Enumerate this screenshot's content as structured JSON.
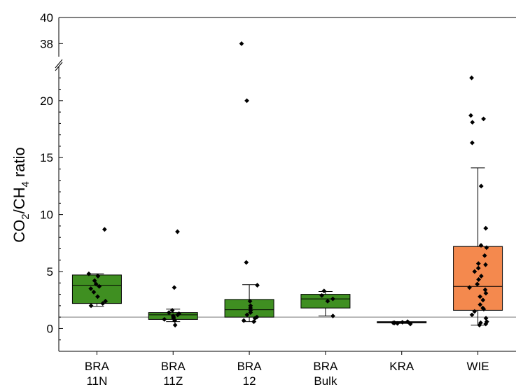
{
  "chart_data": {
    "type": "box",
    "ylabel": {
      "main": "CO",
      "sub1": "2",
      "mid": "/CH",
      "sub2": "4",
      "tail": " ratio"
    },
    "ylim_lower": [
      -2,
      23
    ],
    "ylim_upper": [
      37,
      40
    ],
    "y_ticks_lower": [
      0,
      5,
      10,
      15,
      20
    ],
    "y_ticks_upper": [
      38,
      40
    ],
    "reference_line": 1,
    "categories": [
      {
        "line1": "BRA",
        "line2": "11N"
      },
      {
        "line1": "BRA",
        "line2": "11Z"
      },
      {
        "line1": "BRA",
        "line2": "12"
      },
      {
        "line1": "BRA",
        "line2": "Bulk"
      },
      {
        "line1": "KRA",
        "line2": ""
      },
      {
        "line1": "WIE",
        "line2": ""
      }
    ],
    "boxes": [
      {
        "q1": 2.2,
        "median": 3.8,
        "q3": 4.7,
        "whisker_low": 1.95,
        "whisker_high": 4.8,
        "color": "#3f8f21",
        "points": [
          8.7,
          4.8,
          4.6,
          4.2,
          3.9,
          3.7,
          3.5,
          3.2,
          2.8,
          2.4,
          2.2,
          2.0
        ]
      },
      {
        "q1": 0.8,
        "median": 1.2,
        "q3": 1.4,
        "whisker_low": 0.6,
        "whisker_high": 1.7,
        "color": "#3f8f21",
        "points": [
          8.5,
          3.6,
          1.6,
          1.4,
          1.3,
          1.2,
          1.1,
          1.0,
          0.9,
          0.8,
          0.7,
          0.3
        ]
      },
      {
        "q1": 1.0,
        "median": 1.65,
        "q3": 2.55,
        "whisker_low": 0.6,
        "whisker_high": 3.85,
        "color": "#3f8f21",
        "points": [
          38,
          20,
          5.8,
          3.8,
          2.4,
          2.0,
          1.8,
          1.6,
          1.4,
          1.2,
          1.0,
          0.9,
          0.7,
          0.6
        ]
      },
      {
        "q1": 1.8,
        "median": 2.6,
        "q3": 3.0,
        "whisker_low": 1.1,
        "whisker_high": 3.25,
        "color": "#3f8f21",
        "points": [
          3.3,
          2.9,
          2.6,
          2.4,
          1.1
        ]
      },
      {
        "q1": 0.5,
        "median": 0.55,
        "q3": 0.6,
        "whisker_low": 0.45,
        "whisker_high": 0.6,
        "color": "#3f8f21",
        "points": [
          0.6,
          0.55,
          0.5,
          0.5,
          0.45,
          0.4
        ]
      },
      {
        "q1": 1.6,
        "median": 3.7,
        "q3": 7.2,
        "whisker_low": 0.3,
        "whisker_high": 14.1,
        "color": "#f4894e",
        "points": [
          22,
          18.7,
          18.4,
          18.1,
          16.3,
          12.5,
          8.8,
          7.3,
          7.1,
          6.4,
          5.7,
          5.6,
          5.3,
          5.0,
          4.6,
          4.3,
          3.9,
          3.6,
          3.4,
          3.1,
          2.8,
          2.5,
          2.1,
          1.8,
          1.7,
          1.5,
          1.2,
          0.9,
          0.6,
          0.5,
          0.4,
          0.3
        ]
      }
    ]
  }
}
